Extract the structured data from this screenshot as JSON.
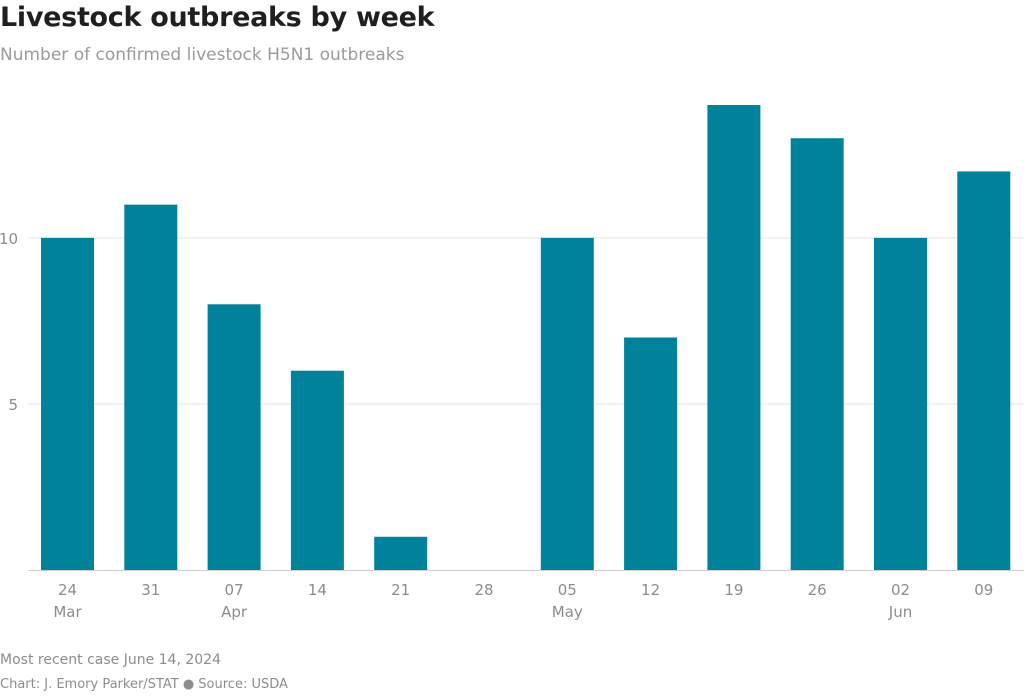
{
  "title": "Livestock outbreaks by week",
  "subtitle": "Number of confirmed livestock H5N1 outbreaks",
  "note": "Most recent case June 14, 2024",
  "credit": "Chart: J. Emory Parker/STAT ● Source: USDA",
  "colors": {
    "bar": "#00829b",
    "grid": "#e3e3e3",
    "axis_text": "#8c8c8c",
    "title": "#1f1f1f"
  },
  "chart_data": {
    "type": "bar",
    "title": "Livestock outbreaks by week",
    "subtitle": "Number of confirmed livestock H5N1 outbreaks",
    "xlabel": "",
    "ylabel": "",
    "categories": [
      "2024-03-24",
      "2024-03-31",
      "2024-04-07",
      "2024-04-14",
      "2024-04-21",
      "2024-04-28",
      "2024-05-05",
      "2024-05-12",
      "2024-05-19",
      "2024-05-26",
      "2024-06-02",
      "2024-06-09"
    ],
    "tick_labels": [
      "24",
      "31",
      "07",
      "14",
      "21",
      "28",
      "05",
      "12",
      "19",
      "26",
      "02",
      "09"
    ],
    "month_labels": [
      "Mar",
      "",
      "Apr",
      "",
      "",
      "",
      "May",
      "",
      "",
      "",
      "Jun",
      ""
    ],
    "values": [
      10,
      11,
      8,
      6,
      1,
      0,
      10,
      7,
      14,
      13,
      10,
      12
    ],
    "ylim": [
      0,
      14
    ],
    "yticks": [
      5,
      10
    ],
    "grid": true,
    "legend": "none"
  }
}
